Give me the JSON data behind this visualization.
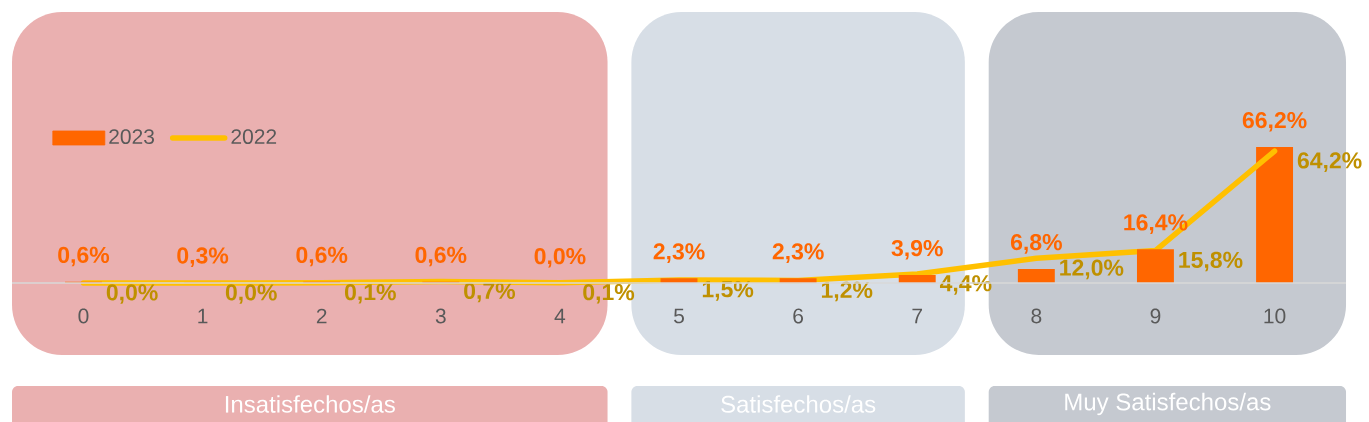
{
  "chart_data": {
    "type": "bar",
    "x": [
      0,
      1,
      2,
      3,
      4,
      5,
      6,
      7,
      8,
      9,
      10
    ],
    "xlim": [
      -0.6,
      10.6
    ],
    "xticks": [
      0,
      1,
      2,
      3,
      4,
      5,
      6,
      7,
      8,
      9,
      10
    ],
    "tick_labels": "x",
    "legend": "top left",
    "series": [
      {
        "name": "2023",
        "color": "#ff6600",
        "values": [
          0.6,
          0.3,
          0.6,
          0.6,
          0.0,
          2.3,
          2.3,
          3.9,
          6.8,
          16.4,
          66.2
        ],
        "value_labels": [
          "0,6%",
          "0,3%",
          "0,6%",
          "0,6%",
          "0,0%",
          "2,3%",
          "2,3%",
          "3,9%",
          "6,8%",
          "16,4%",
          "66,2%"
        ]
      },
      {
        "name": "2022",
        "type": "line",
        "color": "#ffc000",
        "values": [
          0.0,
          0.0,
          0.1,
          0.7,
          0.1,
          1.5,
          1.2,
          4.4,
          12.0,
          15.8,
          64.2
        ],
        "value_labels": [
          "0,0%",
          "0,0%",
          "0,1%",
          "0,7%",
          "0,1%",
          "1,5%",
          "1,2%",
          "4,4%",
          "12,0%",
          "15,8%",
          "64,2%"
        ]
      }
    ],
    "bands": [
      {
        "axis": "x",
        "from": -0.6,
        "to": 4.4,
        "label": "Insatisfechos/as",
        "color": "#eab0b0"
      },
      {
        "axis": "x",
        "from": 4.6,
        "to": 7.4,
        "label": "Satisfechos/as",
        "color": "#d7dee6"
      },
      {
        "axis": "x",
        "from": 7.6,
        "to": 10.6,
        "label": "Muy Satisfechos/as",
        "color": "#c5c9d0"
      }
    ]
  }
}
